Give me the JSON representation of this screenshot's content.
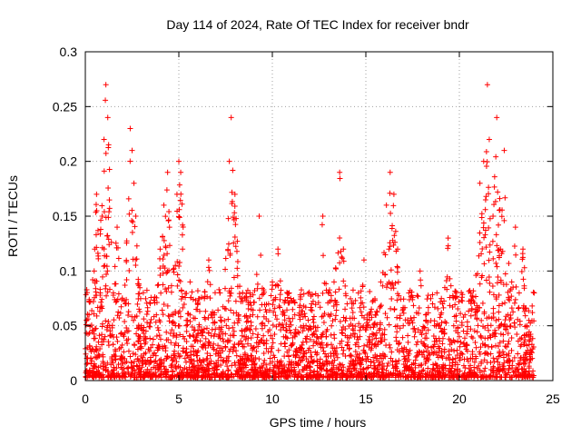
{
  "chart_data": {
    "type": "scatter",
    "title": "Day 114 of 2024, Rate Of TEC Index for receiver bndr",
    "xlabel": "GPS time / hours",
    "ylabel": "ROTI / TECUs",
    "xlim": [
      0,
      25
    ],
    "ylim": [
      0,
      0.3
    ],
    "xticks": [
      "0",
      "5",
      "10",
      "15",
      "20",
      "25"
    ],
    "yticks": [
      "0",
      "0.05",
      "0.1",
      "0.15",
      "0.2",
      "0.25",
      "0.3"
    ],
    "grid": true,
    "marker": "+",
    "color": "#ff0000",
    "series": [
      {
        "name": "ROTI",
        "points_note": "dense point cloud; values are representative samples",
        "x": [
          0.1,
          0.2,
          0.3,
          0.5,
          0.6,
          0.8,
          0.9,
          1.0,
          1.1,
          1.2,
          1.3,
          1.5,
          1.7,
          1.9,
          2.1,
          2.3,
          2.4,
          2.5,
          2.6,
          2.7,
          2.8,
          3.0,
          3.2,
          3.5,
          3.8,
          4.0,
          4.2,
          4.4,
          4.5,
          4.7,
          4.9,
          5.0,
          5.1,
          5.2,
          5.4,
          5.6,
          5.8,
          6.0,
          6.3,
          6.6,
          6.9,
          7.2,
          7.5,
          7.7,
          7.8,
          8.0,
          8.2,
          8.5,
          8.8,
          9.0,
          9.3,
          9.6,
          9.8,
          10.0,
          10.3,
          10.6,
          10.9,
          11.2,
          11.5,
          11.8,
          12.1,
          12.4,
          12.7,
          13.0,
          13.3,
          13.6,
          13.8,
          14.0,
          14.3,
          14.6,
          14.9,
          15.2,
          15.5,
          15.8,
          16.1,
          16.3,
          16.5,
          16.7,
          17.0,
          17.3,
          17.6,
          17.9,
          18.2,
          18.5,
          18.8,
          19.1,
          19.4,
          19.7,
          20.0,
          20.3,
          20.6,
          20.9,
          21.1,
          21.3,
          21.5,
          21.6,
          21.8,
          22.0,
          22.2,
          22.4,
          22.6,
          22.8,
          23.0,
          23.2,
          23.4,
          23.6,
          23.8,
          24.0
        ],
        "y": [
          0.03,
          0.06,
          0.02,
          0.12,
          0.17,
          0.08,
          0.15,
          0.22,
          0.27,
          0.24,
          0.05,
          0.08,
          0.14,
          0.03,
          0.02,
          0.07,
          0.23,
          0.21,
          0.18,
          0.15,
          0.02,
          0.05,
          0.04,
          0.03,
          0.06,
          0.12,
          0.16,
          0.19,
          0.14,
          0.06,
          0.17,
          0.2,
          0.19,
          0.12,
          0.05,
          0.09,
          0.04,
          0.07,
          0.03,
          0.11,
          0.06,
          0.08,
          0.03,
          0.2,
          0.24,
          0.17,
          0.06,
          0.04,
          0.08,
          0.03,
          0.15,
          0.05,
          0.07,
          0.09,
          0.12,
          0.04,
          0.08,
          0.06,
          0.03,
          0.05,
          0.07,
          0.04,
          0.15,
          0.06,
          0.09,
          0.19,
          0.12,
          0.07,
          0.05,
          0.08,
          0.11,
          0.04,
          0.06,
          0.09,
          0.16,
          0.19,
          0.17,
          0.12,
          0.05,
          0.08,
          0.04,
          0.1,
          0.06,
          0.03,
          0.08,
          0.07,
          0.13,
          0.05,
          0.04,
          0.06,
          0.08,
          0.03,
          0.18,
          0.2,
          0.27,
          0.22,
          0.15,
          0.24,
          0.12,
          0.21,
          0.06,
          0.09,
          0.14,
          0.08,
          0.12,
          0.05,
          0.04,
          0.08
        ]
      }
    ]
  }
}
